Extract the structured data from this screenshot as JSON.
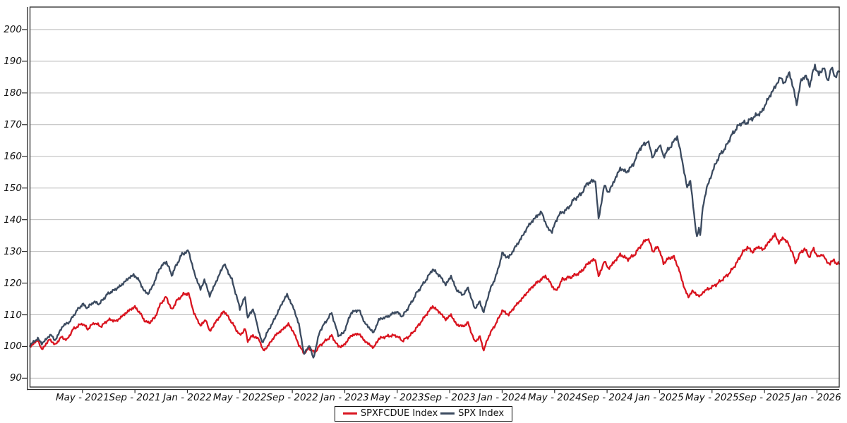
{
  "chart_data": {
    "type": "line",
    "title": "",
    "xlabel": "",
    "ylabel": "",
    "x_axis": {
      "unit": "months since Jan-2021",
      "range_months": [
        0,
        61.7
      ],
      "tick_months": [
        4,
        8,
        12,
        16,
        20,
        24,
        28,
        32,
        36,
        40,
        44,
        48,
        52,
        56,
        60
      ],
      "tick_labels": [
        "May - 2021",
        "Sep - 2021",
        "Jan - 2022",
        "May - 2022",
        "Sep - 2022",
        "Jan - 2023",
        "May - 2023",
        "Sep - 2023",
        "Jan - 2024",
        "May - 2024",
        "Sep - 2024",
        "Jan - 2025",
        "May - 2025",
        "Sep - 2025",
        "Jan - 2026"
      ]
    },
    "y_axis": {
      "ticks": [
        90,
        100,
        110,
        120,
        130,
        140,
        150,
        160,
        170,
        180,
        190,
        200
      ],
      "range": [
        87.2,
        207.1
      ],
      "grid": true
    },
    "legend": {
      "position": "bottom-center",
      "entries": [
        {
          "label": "SPXFCDUE Index",
          "color": "#d9141f"
        },
        {
          "label": "SPX Index",
          "color": "#3b4a5f"
        }
      ]
    },
    "style": {
      "grid_color": "#b9b9b9",
      "axis_color": "#2a2a2a",
      "background": "#ffffff",
      "line_width": 2.3,
      "noise_amplitude": 0.62
    },
    "series": [
      {
        "name": "SPXFCDUE Index",
        "color": "#d9141f",
        "points": [
          [
            0,
            100.0
          ],
          [
            0.6,
            102.0
          ],
          [
            0.9,
            99.0
          ],
          [
            1.5,
            102.3
          ],
          [
            1.9,
            100.5
          ],
          [
            2.4,
            103.0
          ],
          [
            2.8,
            102.0
          ],
          [
            3.3,
            105.5
          ],
          [
            4.0,
            107.3
          ],
          [
            4.4,
            105.5
          ],
          [
            4.9,
            107.5
          ],
          [
            5.4,
            106.3
          ],
          [
            6.0,
            108.5
          ],
          [
            6.6,
            108.0
          ],
          [
            7.0,
            109.5
          ],
          [
            7.6,
            111.5
          ],
          [
            8.0,
            112.5
          ],
          [
            8.4,
            110.5
          ],
          [
            8.8,
            107.8
          ],
          [
            9.1,
            107.5
          ],
          [
            9.5,
            109.0
          ],
          [
            10.0,
            113.8
          ],
          [
            10.4,
            115.6
          ],
          [
            10.8,
            111.5
          ],
          [
            11.2,
            114.5
          ],
          [
            11.7,
            116.5
          ],
          [
            12.1,
            116.7
          ],
          [
            12.5,
            110.5
          ],
          [
            13.0,
            106.5
          ],
          [
            13.4,
            108.5
          ],
          [
            13.7,
            104.7
          ],
          [
            14.2,
            108.0
          ],
          [
            14.8,
            111.2
          ],
          [
            15.4,
            107.5
          ],
          [
            16.0,
            103.5
          ],
          [
            16.4,
            105.5
          ],
          [
            16.6,
            101.8
          ],
          [
            17.0,
            103.5
          ],
          [
            17.5,
            102.0
          ],
          [
            17.8,
            98.5
          ],
          [
            18.2,
            100.5
          ],
          [
            18.7,
            103.5
          ],
          [
            19.3,
            105.5
          ],
          [
            19.7,
            107.1
          ],
          [
            20.1,
            104.5
          ],
          [
            20.5,
            100.5
          ],
          [
            20.9,
            97.8
          ],
          [
            21.3,
            99.5
          ],
          [
            21.7,
            98.0
          ],
          [
            22.1,
            100.3
          ],
          [
            22.6,
            102.0
          ],
          [
            23.0,
            103.4
          ],
          [
            23.5,
            100.0
          ],
          [
            23.9,
            100.2
          ],
          [
            24.5,
            103.5
          ],
          [
            25.1,
            104.0
          ],
          [
            25.5,
            101.8
          ],
          [
            26.2,
            99.6
          ],
          [
            26.6,
            102.5
          ],
          [
            27.3,
            103.3
          ],
          [
            27.9,
            103.5
          ],
          [
            28.4,
            101.8
          ],
          [
            29.0,
            103.5
          ],
          [
            29.5,
            106.0
          ],
          [
            30.2,
            110.0
          ],
          [
            30.7,
            112.7
          ],
          [
            31.3,
            110.5
          ],
          [
            31.7,
            108.5
          ],
          [
            32.1,
            110.0
          ],
          [
            32.5,
            107.0
          ],
          [
            33.0,
            106.3
          ],
          [
            33.4,
            107.5
          ],
          [
            33.9,
            101.5
          ],
          [
            34.3,
            103.0
          ],
          [
            34.6,
            98.9
          ],
          [
            35.0,
            103.5
          ],
          [
            35.6,
            107.8
          ],
          [
            36.0,
            111.3
          ],
          [
            36.5,
            110.0
          ],
          [
            37.0,
            112.8
          ],
          [
            37.5,
            115.0
          ],
          [
            38.0,
            117.5
          ],
          [
            38.6,
            120.0
          ],
          [
            39.0,
            121.2
          ],
          [
            39.3,
            122.3
          ],
          [
            40.1,
            117.4
          ],
          [
            40.6,
            121.2
          ],
          [
            41.3,
            122.0
          ],
          [
            42.0,
            123.5
          ],
          [
            42.6,
            126.5
          ],
          [
            43.1,
            127.5
          ],
          [
            43.35,
            122.0
          ],
          [
            43.8,
            127.0
          ],
          [
            44.1,
            124.5
          ],
          [
            44.5,
            126.5
          ],
          [
            45.0,
            129.0
          ],
          [
            45.6,
            127.5
          ],
          [
            46.1,
            129.0
          ],
          [
            46.6,
            132.0
          ],
          [
            47.1,
            134.2
          ],
          [
            47.5,
            130.0
          ],
          [
            47.9,
            131.5
          ],
          [
            48.3,
            126.3
          ],
          [
            48.7,
            127.8
          ],
          [
            49.1,
            128.3
          ],
          [
            49.5,
            124.0
          ],
          [
            49.9,
            118.3
          ],
          [
            50.2,
            115.6
          ],
          [
            50.5,
            117.5
          ],
          [
            50.8,
            116.5
          ],
          [
            51.1,
            115.8
          ],
          [
            51.4,
            117.5
          ],
          [
            51.8,
            118.3
          ],
          [
            52.3,
            119.5
          ],
          [
            52.9,
            121.5
          ],
          [
            53.4,
            123.5
          ],
          [
            53.9,
            126.5
          ],
          [
            54.3,
            129.5
          ],
          [
            54.7,
            131.3
          ],
          [
            55.1,
            129.8
          ],
          [
            55.5,
            131.5
          ],
          [
            55.9,
            130.5
          ],
          [
            56.3,
            132.8
          ],
          [
            56.8,
            135.3
          ],
          [
            57.1,
            132.8
          ],
          [
            57.45,
            134.3
          ],
          [
            57.8,
            132.5
          ],
          [
            58.15,
            129.5
          ],
          [
            58.35,
            126.3
          ],
          [
            58.7,
            129.3
          ],
          [
            59.05,
            130.9
          ],
          [
            59.4,
            128.3
          ],
          [
            59.75,
            130.8
          ],
          [
            60.1,
            128.0
          ],
          [
            60.4,
            129.3
          ],
          [
            60.7,
            127.0
          ],
          [
            61.0,
            126.1
          ],
          [
            61.3,
            127.4
          ],
          [
            61.5,
            125.9
          ],
          [
            61.7,
            126.3
          ]
        ]
      },
      {
        "name": "SPX Index",
        "color": "#3b4a5f",
        "points": [
          [
            0,
            100.5
          ],
          [
            0.6,
            102.5
          ],
          [
            0.9,
            100.9
          ],
          [
            1.6,
            103.8
          ],
          [
            1.9,
            101.8
          ],
          [
            2.5,
            106.5
          ],
          [
            3.0,
            107.7
          ],
          [
            3.6,
            111.5
          ],
          [
            4.0,
            113.3
          ],
          [
            4.4,
            112.2
          ],
          [
            4.8,
            114.0
          ],
          [
            5.3,
            113.5
          ],
          [
            5.9,
            116.5
          ],
          [
            6.5,
            118.0
          ],
          [
            6.9,
            119.1
          ],
          [
            7.5,
            121.5
          ],
          [
            7.9,
            122.6
          ],
          [
            8.3,
            121.0
          ],
          [
            8.7,
            117.5
          ],
          [
            9.0,
            116.7
          ],
          [
            9.3,
            118.5
          ],
          [
            9.9,
            124.8
          ],
          [
            10.4,
            126.8
          ],
          [
            10.8,
            122.5
          ],
          [
            11.2,
            126.0
          ],
          [
            11.6,
            129.2
          ],
          [
            12.1,
            130.1
          ],
          [
            12.5,
            123.5
          ],
          [
            13.0,
            118.0
          ],
          [
            13.3,
            121.0
          ],
          [
            13.7,
            116.0
          ],
          [
            14.2,
            120.5
          ],
          [
            14.8,
            126.1
          ],
          [
            15.4,
            121.0
          ],
          [
            16.0,
            112.0
          ],
          [
            16.4,
            115.5
          ],
          [
            16.6,
            108.9
          ],
          [
            17.0,
            112.0
          ],
          [
            17.5,
            104.0
          ],
          [
            17.7,
            101.0
          ],
          [
            18.1,
            104.5
          ],
          [
            18.6,
            108.3
          ],
          [
            19.2,
            113.5
          ],
          [
            19.6,
            116.4
          ],
          [
            20.1,
            112.0
          ],
          [
            20.5,
            107.0
          ],
          [
            20.9,
            97.5
          ],
          [
            21.3,
            100.5
          ],
          [
            21.6,
            96.2
          ],
          [
            22.1,
            104.9
          ],
          [
            22.5,
            107.5
          ],
          [
            23.0,
            110.6
          ],
          [
            23.5,
            103.5
          ],
          [
            23.9,
            104.1
          ],
          [
            24.5,
            110.8
          ],
          [
            25.1,
            111.5
          ],
          [
            25.5,
            107.6
          ],
          [
            26.2,
            104.3
          ],
          [
            26.6,
            108.5
          ],
          [
            27.3,
            109.5
          ],
          [
            27.9,
            111.0
          ],
          [
            28.4,
            109.5
          ],
          [
            29.0,
            113.3
          ],
          [
            29.5,
            117.0
          ],
          [
            30.2,
            121.0
          ],
          [
            30.7,
            124.4
          ],
          [
            31.3,
            122.0
          ],
          [
            31.7,
            119.5
          ],
          [
            32.1,
            122.2
          ],
          [
            32.5,
            118.0
          ],
          [
            33.0,
            116.2
          ],
          [
            33.4,
            118.5
          ],
          [
            33.9,
            112.0
          ],
          [
            34.3,
            114.0
          ],
          [
            34.6,
            110.8
          ],
          [
            35.0,
            117.0
          ],
          [
            35.6,
            123.0
          ],
          [
            36.0,
            129.3
          ],
          [
            36.5,
            128.0
          ],
          [
            37.0,
            131.3
          ],
          [
            37.5,
            134.5
          ],
          [
            38.0,
            138.1
          ],
          [
            38.6,
            141.0
          ],
          [
            39.0,
            142.4
          ],
          [
            39.5,
            137.0
          ],
          [
            39.8,
            136.3
          ],
          [
            40.3,
            141.5
          ],
          [
            41.0,
            143.5
          ],
          [
            41.5,
            146.5
          ],
          [
            42.0,
            148.0
          ],
          [
            42.5,
            151.5
          ],
          [
            43.1,
            152.5
          ],
          [
            43.35,
            140.2
          ],
          [
            43.8,
            151.0
          ],
          [
            44.1,
            148.5
          ],
          [
            44.4,
            151.0
          ],
          [
            45.0,
            156.2
          ],
          [
            45.5,
            155.0
          ],
          [
            46.0,
            157.5
          ],
          [
            46.5,
            162.5
          ],
          [
            47.1,
            164.8
          ],
          [
            47.5,
            159.6
          ],
          [
            48.0,
            163.7
          ],
          [
            48.3,
            160.0
          ],
          [
            48.9,
            163.5
          ],
          [
            49.35,
            166.3
          ],
          [
            49.8,
            157.0
          ],
          [
            50.1,
            150.0
          ],
          [
            50.35,
            152.5
          ],
          [
            50.7,
            139.0
          ],
          [
            50.85,
            134.5
          ],
          [
            51.0,
            137.5
          ],
          [
            51.1,
            134.8
          ],
          [
            51.3,
            144.0
          ],
          [
            51.6,
            150.0
          ],
          [
            51.9,
            153.5
          ],
          [
            52.2,
            157.0
          ],
          [
            52.6,
            160.5
          ],
          [
            53.0,
            162.5
          ],
          [
            53.4,
            166.0
          ],
          [
            53.8,
            168.5
          ],
          [
            54.2,
            170.5
          ],
          [
            54.6,
            170.5
          ],
          [
            55.0,
            171.8
          ],
          [
            55.4,
            173.0
          ],
          [
            55.8,
            174.0
          ],
          [
            56.2,
            177.5
          ],
          [
            56.6,
            180.5
          ],
          [
            56.9,
            182.5
          ],
          [
            57.2,
            185.0
          ],
          [
            57.5,
            183.0
          ],
          [
            57.9,
            186.4
          ],
          [
            58.2,
            181.5
          ],
          [
            58.45,
            176.5
          ],
          [
            58.8,
            184.0
          ],
          [
            59.1,
            185.5
          ],
          [
            59.45,
            182.5
          ],
          [
            59.85,
            188.8
          ],
          [
            60.15,
            185.5
          ],
          [
            60.5,
            188.3
          ],
          [
            60.8,
            183.8
          ],
          [
            61.1,
            187.8
          ],
          [
            61.4,
            185.2
          ],
          [
            61.7,
            186.8
          ]
        ]
      }
    ]
  }
}
